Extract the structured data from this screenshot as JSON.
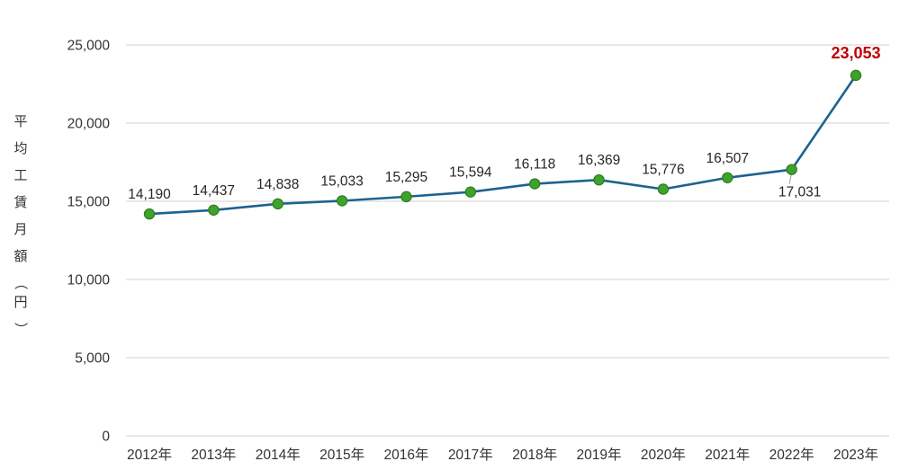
{
  "chart_data": {
    "type": "line",
    "categories": [
      "2012年",
      "2013年",
      "2014年",
      "2015年",
      "2016年",
      "2017年",
      "2018年",
      "2019年",
      "2020年",
      "2021年",
      "2022年",
      "2023年"
    ],
    "values": [
      14190,
      14437,
      14838,
      15033,
      15295,
      15594,
      16118,
      16369,
      15776,
      16507,
      17031,
      23053
    ],
    "point_labels": [
      "14,190",
      "14,437",
      "14,838",
      "15,033",
      "15,295",
      "15,594",
      "16,118",
      "16,369",
      "15,776",
      "16,507",
      "17,031",
      "23,053"
    ],
    "title": "",
    "xlabel": "",
    "ylabel": "平均工賃月額（円）",
    "ylim": [
      0,
      25000
    ],
    "ytick_step": 5000,
    "ytick_labels": [
      "0",
      "5,000",
      "10,000",
      "15,000",
      "20,000",
      "25,000"
    ],
    "grid": true,
    "legend": false,
    "highlight_index": 11,
    "below_label_index": 10,
    "colors": {
      "line": "#1d6290",
      "marker_fill": "#3ea32d",
      "marker_edge": "#2e7d1a",
      "highlight_text": "#c00000",
      "label_text": "#262626",
      "axis_text": "#333333",
      "grid_line": "#d9d9d9",
      "leader_line": "#9a9a9a",
      "background": "#ffffff"
    }
  }
}
